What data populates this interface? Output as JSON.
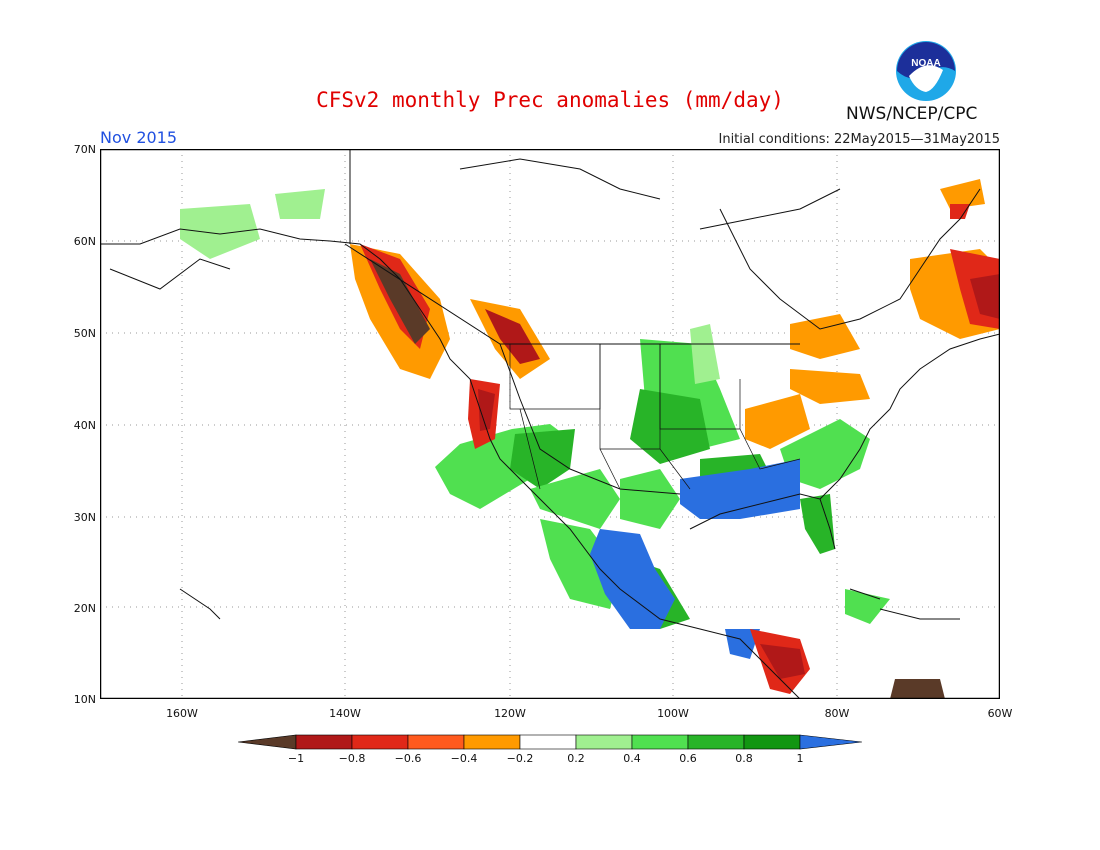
{
  "title": "CFSv2 monthly Prec anomalies (mm/day)",
  "month_label": "Nov 2015",
  "initial_conditions": "Initial conditions: 22May2015—31May2015",
  "agency": "NWS/NCEP/CPC",
  "logo": {
    "text": "NOAA",
    "icon": "noaa-logo-icon"
  },
  "map": {
    "region": "North America",
    "lon_range": [
      -170,
      -60
    ],
    "lat_range": [
      10,
      70
    ],
    "grid": true,
    "lat_ticks": [
      "70N",
      "60N",
      "50N",
      "40N",
      "30N",
      "20N",
      "10N"
    ],
    "lon_ticks": [
      "160W",
      "140W",
      "120W",
      "100W",
      "80W",
      "60W"
    ]
  },
  "colorbar": {
    "labels": [
      "−1",
      "−0.8",
      "−0.6",
      "−0.4",
      "−0.2",
      "0.2",
      "0.4",
      "0.6",
      "0.8",
      "1"
    ],
    "colors": [
      "#5a3a28",
      "#b01818",
      "#e02818",
      "#ff5a1e",
      "#ff9a00",
      "#ffffff",
      "#a0f090",
      "#50e050",
      "#28b428",
      "#129612",
      "#2a6fe0"
    ]
  }
}
